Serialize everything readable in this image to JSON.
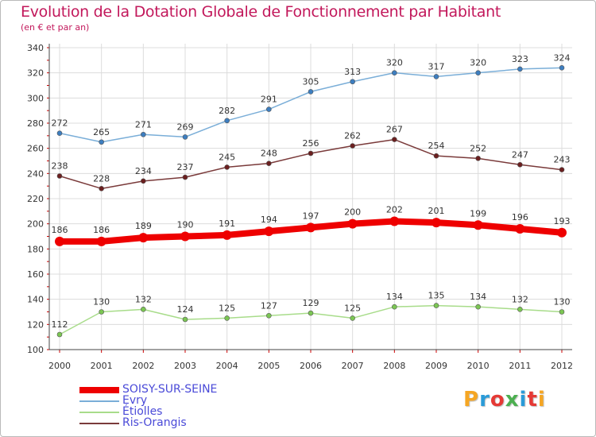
{
  "header": {
    "title": "Evolution de la Dotation Globale de Fonctionnement par Habitant",
    "subtitle": "(en € et par an)"
  },
  "logo": {
    "text": "Proxiti",
    "colors": [
      "#f5a623",
      "#2a9bd8",
      "#e53935",
      "#4caf50",
      "#2a9bd8",
      "#e53935",
      "#f5a623"
    ]
  },
  "chart_data": {
    "type": "line",
    "x": [
      "2000",
      "2001",
      "2002",
      "2003",
      "2004",
      "2005",
      "2006",
      "2007",
      "2008",
      "2009",
      "2010",
      "2011",
      "2012"
    ],
    "ylim": [
      100,
      340
    ],
    "yticks": [
      100,
      120,
      140,
      160,
      180,
      200,
      220,
      240,
      260,
      280,
      300,
      320,
      340
    ],
    "grid": true,
    "legend_position": "bottom-left",
    "series": [
      {
        "name": "SOISY-SUR-SEINE",
        "color": "#ee0000",
        "marker": "#ee0000",
        "width": 8,
        "values": [
          186,
          186,
          189,
          190,
          191,
          194,
          197,
          200,
          202,
          201,
          199,
          196,
          193
        ]
      },
      {
        "name": "Evry",
        "color": "#7aaed8",
        "marker": "#3d7ec0",
        "width": 1.5,
        "values": [
          272,
          265,
          271,
          269,
          282,
          291,
          305,
          313,
          320,
          317,
          320,
          323,
          324
        ]
      },
      {
        "name": "Étiolles",
        "color": "#a8dc8a",
        "marker": "#7bc653",
        "width": 1.5,
        "values": [
          112,
          130,
          132,
          124,
          125,
          127,
          129,
          125,
          134,
          135,
          134,
          132,
          130
        ]
      },
      {
        "name": "Ris-Orangis",
        "color": "#7a3a3a",
        "marker": "#6b1f1f",
        "width": 1.5,
        "values": [
          238,
          228,
          234,
          237,
          245,
          248,
          256,
          262,
          267,
          254,
          252,
          247,
          243
        ]
      }
    ]
  }
}
